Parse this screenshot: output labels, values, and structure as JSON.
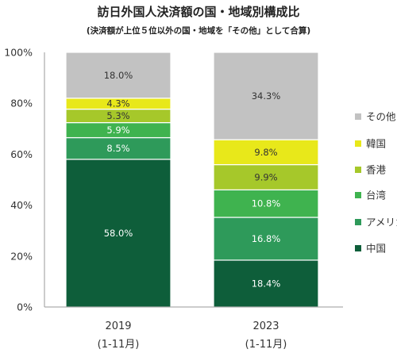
{
  "chart_data": {
    "type": "bar",
    "stacked": true,
    "title": "訪日外国人決済額の国・地域別構成比",
    "subtitle": "(決済額が上位５位以外の国・地域を「その他」として合算)",
    "xlabel": "",
    "ylabel": "",
    "ylim": [
      0,
      100
    ],
    "yticks": [
      "0%",
      "20%",
      "40%",
      "60%",
      "80%",
      "100%"
    ],
    "categories": [
      {
        "year": "2019",
        "period": "(1-11月)"
      },
      {
        "year": "2023",
        "period": "(1-11月)"
      }
    ],
    "series": [
      {
        "name": "中国",
        "color": "#0e5e3a",
        "label_color": "#ffffff",
        "values": [
          58.0,
          18.4
        ]
      },
      {
        "name": "アメリカ",
        "color": "#2e9a5a",
        "label_color": "#ffffff",
        "values": [
          8.5,
          16.8
        ]
      },
      {
        "name": "台湾",
        "color": "#3fb34f",
        "label_color": "#ffffff",
        "values": [
          5.9,
          10.8
        ]
      },
      {
        "name": "香港",
        "color": "#a6c82a",
        "label_color": "#333333",
        "values": [
          5.3,
          9.9
        ]
      },
      {
        "name": "韓国",
        "color": "#e8e81a",
        "label_color": "#333333",
        "values": [
          4.3,
          9.8
        ]
      },
      {
        "name": "その他",
        "color": "#c2c2c2",
        "label_color": "#333333",
        "values": [
          18.0,
          34.3
        ]
      }
    ],
    "value_labels": [
      [
        "58.0%",
        "8.5%",
        "5.9%",
        "5.3%",
        "4.3%",
        "18.0%"
      ],
      [
        "18.4%",
        "16.8%",
        "10.8%",
        "9.9%",
        "9.8%",
        "34.3%"
      ]
    ],
    "grid": false,
    "legend": "right"
  }
}
